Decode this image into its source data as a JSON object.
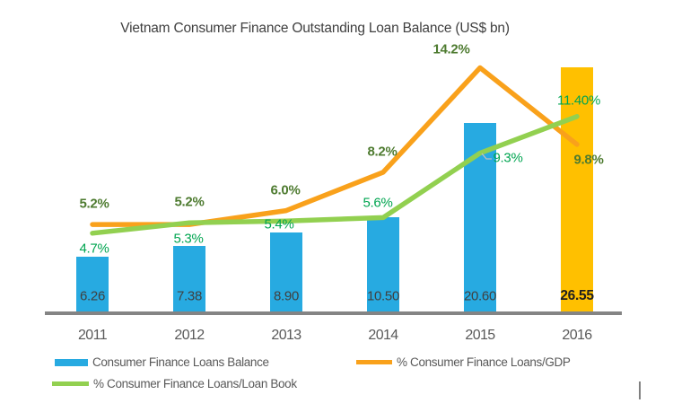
{
  "title": "Vietnam Consumer Finance Outstanding Loan Balance (US$ bn)",
  "chart_data": {
    "type": "bar+line combo",
    "categories": [
      "2011",
      "2012",
      "2013",
      "2014",
      "2015",
      "2016"
    ],
    "series": [
      {
        "name": "Consumer Finance Loans Balance",
        "type": "bar",
        "values": [
          6.26,
          7.38,
          8.9,
          10.5,
          20.6,
          26.55
        ],
        "labels": [
          "6.26",
          "7.38",
          "8.90",
          "10.50",
          "20.60",
          "26.55"
        ],
        "bar_colors": [
          "#27AAE1",
          "#27AAE1",
          "#27AAE1",
          "#27AAE1",
          "#27AAE1",
          "#FFC000"
        ],
        "highlighted_category": "2016",
        "axis": "left",
        "ylim": [
          0,
          28
        ]
      },
      {
        "name": "% Consumer Finance Loans/GDP",
        "type": "line",
        "values": [
          5.2,
          5.2,
          6.0,
          8.2,
          14.2,
          9.8
        ],
        "labels": [
          "5.2%",
          "5.2%",
          "6.0%",
          "8.2%",
          "14.2%",
          "9.8%"
        ],
        "color": "#F9A11B",
        "label_color": "#4E7B30",
        "axis": "right",
        "ylim": [
          0,
          15
        ]
      },
      {
        "name": "% Consumer Finance Loans/Loan Book",
        "type": "line",
        "values": [
          4.7,
          5.3,
          5.4,
          5.6,
          9.3,
          11.4
        ],
        "labels": [
          "4.7%",
          "5.3%",
          "5.4%",
          "5.6%",
          "9.3%",
          "11.40%"
        ],
        "color": "#92D050",
        "label_color": "#00A550",
        "axis": "right",
        "ylim": [
          0,
          15
        ]
      }
    ],
    "legend_position": "bottom",
    "axes_visible": false,
    "grid": false
  },
  "legend": {
    "items": [
      {
        "label": "Consumer Finance Loans Balance",
        "swatch": "bar",
        "color": "#27AAE1"
      },
      {
        "label": "% Consumer Finance Loans/GDP",
        "swatch": "line",
        "color": "#F9A11B"
      },
      {
        "label": "% Consumer Finance Loans/Loan Book",
        "swatch": "line",
        "color": "#92D050"
      }
    ]
  },
  "colors": {
    "bar_blue": "#27AAE1",
    "bar_gold": "#FFC000",
    "line_orange": "#F9A11B",
    "line_green": "#92D050",
    "label_dark_green": "#4E7B30",
    "label_bright_green": "#00A550",
    "axis_gray": "#848484",
    "text_gray": "#595959"
  }
}
